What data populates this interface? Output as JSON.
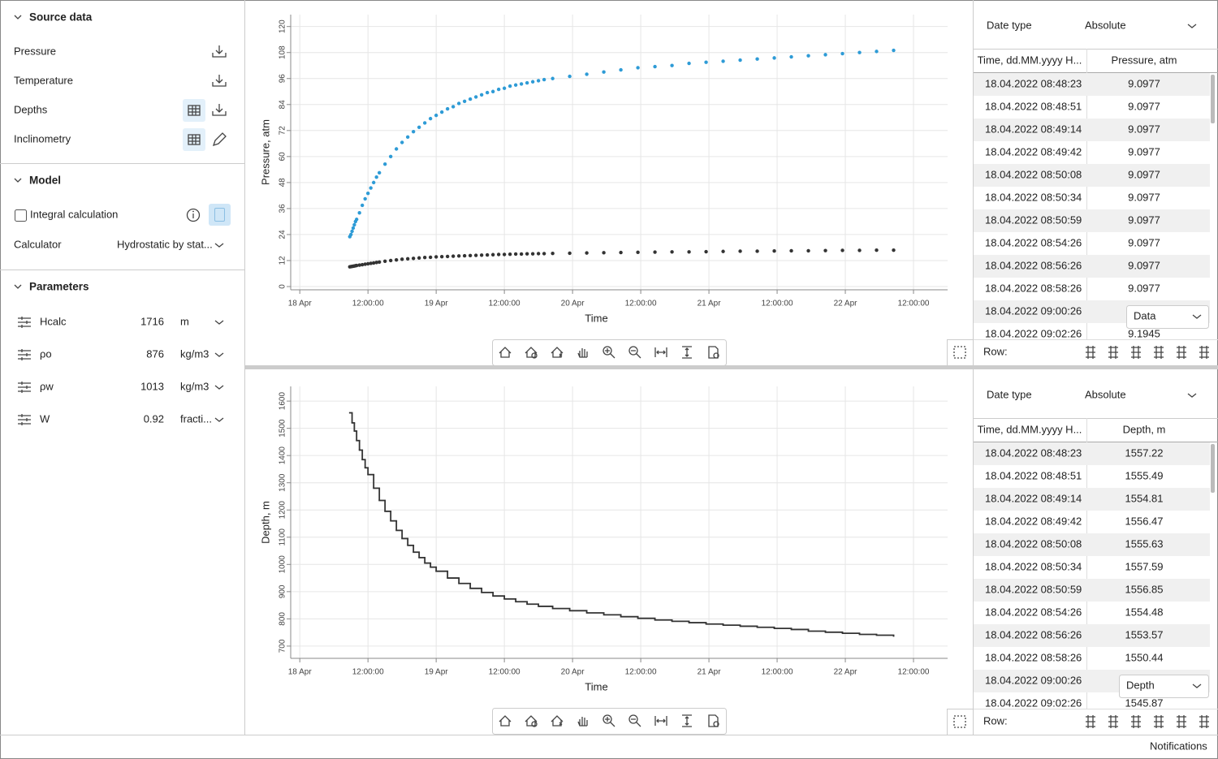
{
  "source_data": {
    "title": "Source data",
    "items": [
      "Pressure",
      "Temperature",
      "Depths",
      "Inclinometry"
    ]
  },
  "model": {
    "title": "Model",
    "integral_label": "Integral calculation",
    "calculator_label": "Calculator",
    "calculator_value": "Hydrostatic by stat..."
  },
  "parameters": {
    "title": "Parameters",
    "rows": [
      {
        "name": "Hcalc",
        "value": 1716,
        "unit": "m"
      },
      {
        "name": "ρo",
        "value": 876,
        "unit": "kg/m3"
      },
      {
        "name": "ρw",
        "value": 1013,
        "unit": "kg/m3"
      },
      {
        "name": "W",
        "value": 0.92,
        "unit": "fracti..."
      }
    ]
  },
  "chart_data": [
    {
      "type": "scatter",
      "xlabel": "Time",
      "ylabel": "Pressure, atm",
      "xlim": [
        -1.6,
        114
      ],
      "ylim": [
        -1.5,
        125.5
      ],
      "grid": true,
      "xticks": [
        {
          "value": 0,
          "label": "18 Apr"
        },
        {
          "value": 12,
          "label": "12:00:00"
        },
        {
          "value": 24,
          "label": "19 Apr"
        },
        {
          "value": 36,
          "label": "12:00:00"
        },
        {
          "value": 48,
          "label": "20 Apr"
        },
        {
          "value": 60,
          "label": "12:00:00"
        },
        {
          "value": 72,
          "label": "21 Apr"
        },
        {
          "value": 84,
          "label": "12:00:00"
        },
        {
          "value": 96,
          "label": "22 Apr"
        },
        {
          "value": 108,
          "label": "12:00:00"
        }
      ],
      "yticks": [
        0,
        12,
        24,
        36,
        48,
        60,
        72,
        84,
        96,
        108,
        120
      ],
      "x": [
        8.8,
        9.0,
        9.2,
        9.4,
        9.6,
        9.8,
        10.0,
        10.5,
        11.0,
        11.5,
        12.0,
        12.5,
        13.0,
        13.5,
        14.0,
        15,
        16,
        17,
        18,
        19,
        20,
        21,
        22,
        23,
        24,
        25,
        26,
        27,
        28,
        29,
        30,
        31,
        32,
        33,
        34,
        35,
        36,
        37,
        38,
        39,
        40,
        41,
        42,
        43,
        44.5,
        47.5,
        50.5,
        53.5,
        56.5,
        59.5,
        62.5,
        65.5,
        68.5,
        71.5,
        74.5,
        77.5,
        80.5,
        83.5,
        86.5,
        89.5,
        92.5,
        95.5,
        98.5,
        101.5,
        104.5
      ],
      "series": [
        {
          "color": "#2e9bd6",
          "values": [
            23,
            24,
            25.5,
            27,
            28.5,
            30,
            31,
            34,
            37.5,
            40.5,
            43,
            45.5,
            48,
            50.5,
            52.5,
            56.5,
            60,
            63.5,
            66.5,
            69,
            71.5,
            73.5,
            75.5,
            77.5,
            79,
            80.5,
            82,
            83,
            84.5,
            85.5,
            86.5,
            87.5,
            88.5,
            89.5,
            90,
            91,
            91.5,
            92.5,
            93,
            93.5,
            94,
            94.5,
            95,
            95.5,
            96,
            97,
            98,
            99,
            100,
            101,
            101.5,
            102,
            103,
            103.5,
            104,
            104.5,
            105,
            105.5,
            106,
            106.5,
            107,
            107.5,
            108,
            108.5,
            109
          ]
        },
        {
          "color": "#333333",
          "values": [
            9.1,
            9.2,
            9.3,
            9.4,
            9.5,
            9.6,
            9.7,
            9.9,
            10.1,
            10.3,
            10.5,
            10.7,
            10.9,
            11.1,
            11.3,
            11.7,
            12.0,
            12.3,
            12.6,
            12.8,
            13.0,
            13.2,
            13.4,
            13.5,
            13.7,
            13.8,
            13.9,
            14.0,
            14.1,
            14.2,
            14.3,
            14.4,
            14.5,
            14.6,
            14.7,
            14.8,
            14.8,
            14.9,
            15.0,
            15.0,
            15.1,
            15.1,
            15.2,
            15.2,
            15.3,
            15.4,
            15.5,
            15.6,
            15.7,
            15.8,
            15.9,
            16.0,
            16.0,
            16.1,
            16.2,
            16.3,
            16.3,
            16.4,
            16.5,
            16.5,
            16.6,
            16.7,
            16.7,
            16.8,
            16.8
          ]
        }
      ]
    },
    {
      "type": "step",
      "xlabel": "Time",
      "ylabel": "Depth, m",
      "xlim": [
        -1.6,
        114
      ],
      "ylim": [
        655,
        1654
      ],
      "grid": true,
      "xticks": [
        {
          "value": 0,
          "label": "18 Apr"
        },
        {
          "value": 12,
          "label": "12:00:00"
        },
        {
          "value": 24,
          "label": "19 Apr"
        },
        {
          "value": 36,
          "label": "12:00:00"
        },
        {
          "value": 48,
          "label": "20 Apr"
        },
        {
          "value": 60,
          "label": "12:00:00"
        },
        {
          "value": 72,
          "label": "21 Apr"
        },
        {
          "value": 84,
          "label": "12:00:00"
        },
        {
          "value": 96,
          "label": "22 Apr"
        },
        {
          "value": 108,
          "label": "12:00:00"
        }
      ],
      "yticks": [
        700,
        800,
        900,
        1000,
        1100,
        1200,
        1300,
        1400,
        1500,
        1600
      ],
      "color": "#333333",
      "x": [
        8.8,
        9.2,
        9.6,
        10.0,
        10.5,
        11,
        11.5,
        12,
        13,
        14,
        15,
        16,
        17,
        18,
        19,
        20,
        21,
        22,
        23,
        24,
        26,
        28,
        30,
        32,
        34,
        36,
        38,
        40,
        42,
        44.5,
        47.5,
        50.5,
        53.5,
        56.5,
        59.5,
        62.5,
        65.5,
        68.5,
        71.5,
        74.5,
        77.5,
        80.5,
        83.5,
        86.5,
        89.5,
        92.5,
        95.5,
        98.5,
        101.5,
        104.5
      ],
      "values": [
        1557,
        1520,
        1490,
        1455,
        1420,
        1385,
        1355,
        1330,
        1280,
        1235,
        1195,
        1160,
        1125,
        1095,
        1070,
        1045,
        1025,
        1005,
        990,
        975,
        950,
        930,
        912,
        897,
        884,
        873,
        863,
        854,
        846,
        838,
        830,
        822,
        815,
        808,
        802,
        796,
        791,
        786,
        781,
        777,
        773,
        769,
        765,
        761,
        755,
        751,
        747,
        743,
        740,
        737
      ]
    }
  ],
  "tables": [
    {
      "date_type_label": "Date type",
      "date_type": "Absolute",
      "columns": [
        "Time, dd.MM.yyyy H...",
        "Pressure, atm"
      ],
      "rows": [
        [
          "18.04.2022 08:48:23",
          "9.0977"
        ],
        [
          "18.04.2022 08:48:51",
          "9.0977"
        ],
        [
          "18.04.2022 08:49:14",
          "9.0977"
        ],
        [
          "18.04.2022 08:49:42",
          "9.0977"
        ],
        [
          "18.04.2022 08:50:08",
          "9.0977"
        ],
        [
          "18.04.2022 08:50:34",
          "9.0977"
        ],
        [
          "18.04.2022 08:50:59",
          "9.0977"
        ],
        [
          "18.04.2022 08:54:26",
          "9.0977"
        ],
        [
          "18.04.2022 08:56:26",
          "9.0977"
        ],
        [
          "18.04.2022 08:58:26",
          "9.0977"
        ],
        [
          "18.04.2022 09:00:26",
          null
        ],
        [
          "18.04.2022 09:02:26",
          "9.1945"
        ]
      ],
      "dropdown": "Data",
      "row_label": "Row:"
    },
    {
      "date_type_label": "Date type",
      "date_type": "Absolute",
      "columns": [
        "Time, dd.MM.yyyy H...",
        "Depth, m"
      ],
      "rows": [
        [
          "18.04.2022 08:48:23",
          "1557.22"
        ],
        [
          "18.04.2022 08:48:51",
          "1555.49"
        ],
        [
          "18.04.2022 08:49:14",
          "1554.81"
        ],
        [
          "18.04.2022 08:49:42",
          "1556.47"
        ],
        [
          "18.04.2022 08:50:08",
          "1555.63"
        ],
        [
          "18.04.2022 08:50:34",
          "1557.59"
        ],
        [
          "18.04.2022 08:50:59",
          "1556.85"
        ],
        [
          "18.04.2022 08:54:26",
          "1554.48"
        ],
        [
          "18.04.2022 08:56:26",
          "1553.57"
        ],
        [
          "18.04.2022 08:58:26",
          "1550.44"
        ],
        [
          "18.04.2022 09:00:26",
          null
        ],
        [
          "18.04.2022 09:02:26",
          "1545.87"
        ]
      ],
      "dropdown": "Depth",
      "row_label": "Row:"
    }
  ],
  "status_bar": {
    "notifications": "Notifications"
  }
}
